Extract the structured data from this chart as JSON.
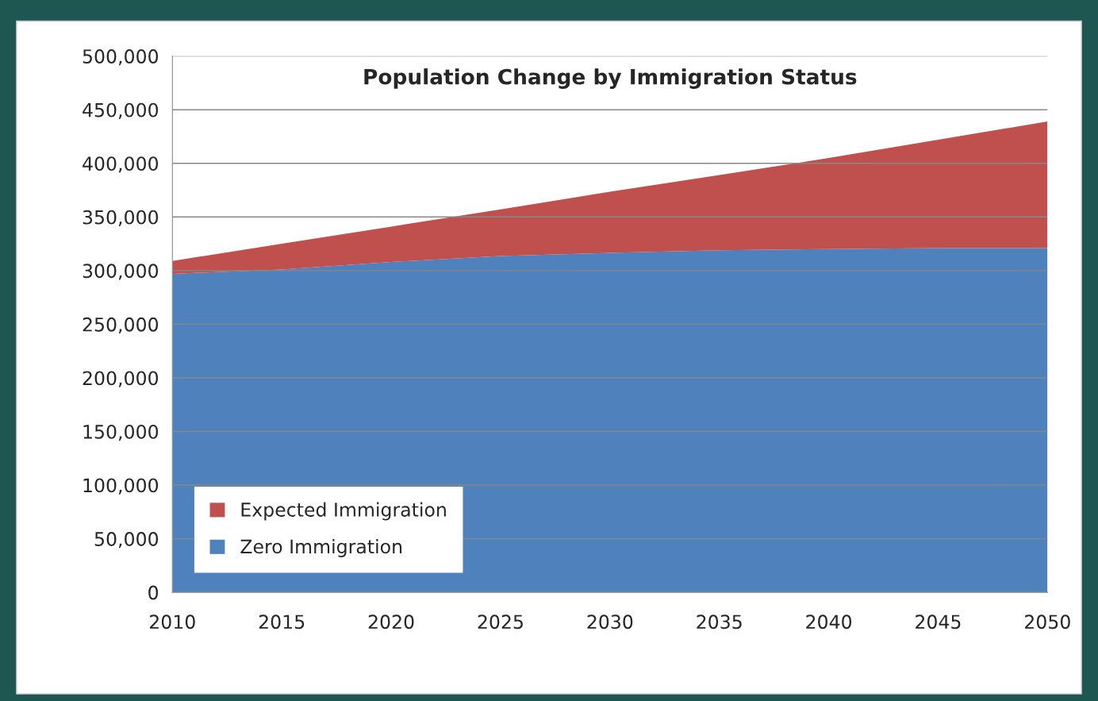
{
  "chart_data": {
    "type": "area",
    "title": "Population Change by Immigration Status",
    "x": [
      2010,
      2015,
      2020,
      2025,
      2030,
      2035,
      2040,
      2045,
      2050
    ],
    "stacked": true,
    "series": [
      {
        "name": "Zero Immigration",
        "color": "#4f81bd",
        "values": [
          297000,
          301000,
          308000,
          313500,
          316500,
          319000,
          320000,
          321000,
          321000
        ]
      },
      {
        "name": "Expected Immigration",
        "color": "#c0504d",
        "values": [
          12000,
          24000,
          33000,
          43500,
          57000,
          70000,
          85000,
          101000,
          118000
        ]
      }
    ],
    "xlim": [
      2010,
      2050
    ],
    "xticks": [
      2010,
      2015,
      2020,
      2025,
      2030,
      2035,
      2040,
      2045,
      2050
    ],
    "ylim": [
      0,
      500000
    ],
    "yticks": [
      {
        "value": 0,
        "label": "0"
      },
      {
        "value": 50000,
        "label": "50,000"
      },
      {
        "value": 100000,
        "label": "100,000"
      },
      {
        "value": 150000,
        "label": "150,000"
      },
      {
        "value": 200000,
        "label": "200,000"
      },
      {
        "value": 250000,
        "label": "250,000"
      },
      {
        "value": 300000,
        "label": "300,000"
      },
      {
        "value": 350000,
        "label": "350,000"
      },
      {
        "value": 400000,
        "label": "400,000"
      },
      {
        "value": 450000,
        "label": "450,000"
      },
      {
        "value": 500000,
        "label": "500,000"
      }
    ],
    "grid": "y",
    "legend": "bottom left"
  }
}
